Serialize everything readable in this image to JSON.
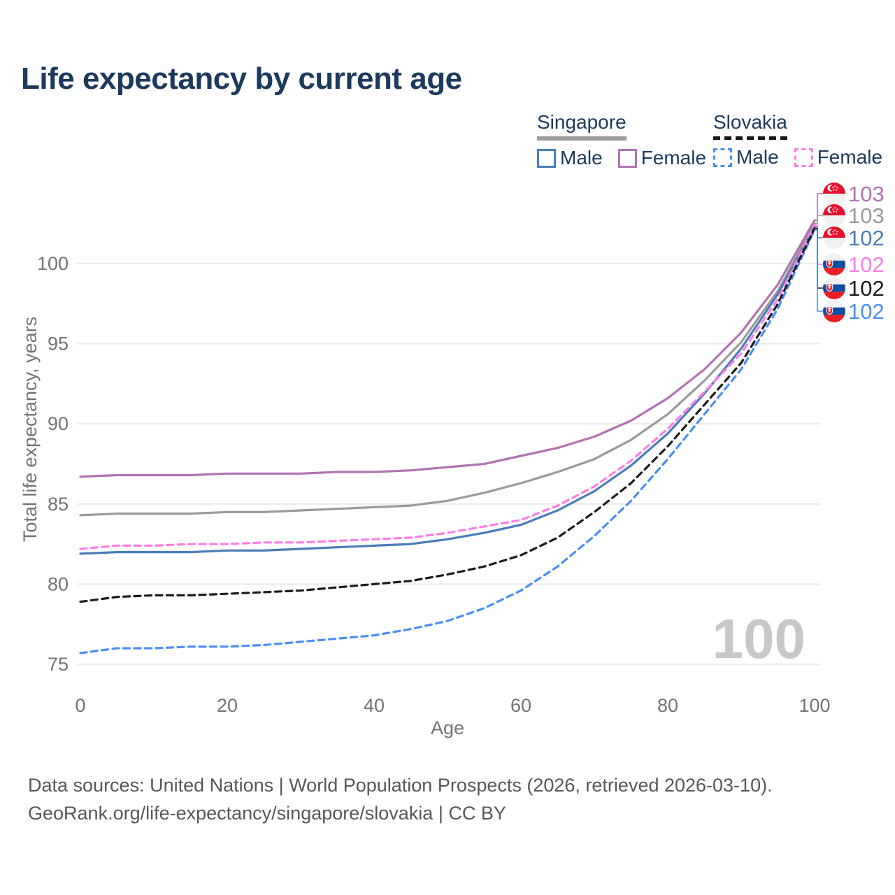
{
  "title": "Life expectancy by current age",
  "watermark": "100",
  "legend": {
    "groups": [
      {
        "country": "Singapore",
        "line_style": "solid",
        "underline_color": "#9a9a9a",
        "items": [
          {
            "label": "Male",
            "color": "#4a7db8",
            "dashed": false
          },
          {
            "label": "Female",
            "color": "#b273b2",
            "dashed": false
          }
        ]
      },
      {
        "country": "Slovakia",
        "line_style": "dashed",
        "underline_color": "#161616",
        "items": [
          {
            "label": "Male",
            "color": "#4b8ef5",
            "dashed": true
          },
          {
            "label": "Female",
            "color": "#ff7de8",
            "dashed": true
          }
        ]
      }
    ]
  },
  "footer": {
    "line1": "Data sources: United Nations | World Population Prospects (2026, retrieved 2026-03-10).",
    "line2": "GeoRank.org/life-expectancy/singapore/slovakia | CC BY"
  },
  "chart_data": {
    "type": "line",
    "title": "Life expectancy by current age",
    "xlabel": "Age",
    "ylabel": "Total life expectancy, years",
    "x_ticks": [
      0,
      20,
      40,
      60,
      80,
      100
    ],
    "y_ticks": [
      75,
      80,
      85,
      90,
      95,
      100
    ],
    "xlim": [
      0,
      100
    ],
    "ylim": [
      75,
      100
    ],
    "grid": "horizontal-only",
    "legend_position": "top-right",
    "x": [
      0,
      5,
      10,
      15,
      20,
      25,
      30,
      35,
      40,
      45,
      50,
      55,
      60,
      65,
      70,
      75,
      80,
      85,
      90,
      95,
      100
    ],
    "series": [
      {
        "name": "Singapore Female",
        "country": "Singapore",
        "sex": "Female",
        "color": "#b273b2",
        "dashed": false,
        "end_label": "103",
        "values": [
          86.7,
          86.8,
          86.8,
          86.8,
          86.9,
          86.9,
          86.9,
          87.0,
          87.0,
          87.1,
          87.3,
          87.5,
          88.0,
          88.5,
          89.2,
          90.2,
          91.6,
          93.4,
          95.7,
          98.7,
          102.7
        ]
      },
      {
        "name": "Singapore Both sexes",
        "country": "Singapore",
        "sex": "Both sexes",
        "color": "#9a9a9a",
        "dashed": false,
        "end_label": "103",
        "values": [
          84.3,
          84.4,
          84.4,
          84.4,
          84.5,
          84.5,
          84.6,
          84.7,
          84.8,
          84.9,
          85.2,
          85.7,
          86.3,
          87.0,
          87.8,
          89.0,
          90.6,
          92.7,
          95.1,
          98.3,
          102.5
        ]
      },
      {
        "name": "Singapore Male",
        "country": "Singapore",
        "sex": "Male",
        "color": "#4a7db8",
        "dashed": false,
        "end_label": "102",
        "values": [
          81.9,
          82.0,
          82.0,
          82.0,
          82.1,
          82.1,
          82.2,
          82.3,
          82.4,
          82.5,
          82.8,
          83.2,
          83.7,
          84.6,
          85.8,
          87.4,
          89.4,
          91.9,
          94.7,
          98.1,
          102.3
        ]
      },
      {
        "name": "Slovakia Female",
        "country": "Slovakia",
        "sex": "Female",
        "color": "#ff7de8",
        "dashed": true,
        "end_label": "102",
        "values": [
          82.2,
          82.4,
          82.4,
          82.5,
          82.5,
          82.6,
          82.6,
          82.7,
          82.8,
          82.9,
          83.2,
          83.6,
          84.0,
          84.9,
          86.1,
          87.7,
          89.7,
          92.0,
          94.4,
          97.8,
          102.4
        ]
      },
      {
        "name": "Slovakia Both sexes",
        "country": "Slovakia",
        "sex": "Both sexes",
        "color": "#1b1b1b",
        "dashed": true,
        "end_label": "102",
        "values": [
          78.9,
          79.2,
          79.3,
          79.3,
          79.4,
          79.5,
          79.6,
          79.8,
          80.0,
          80.2,
          80.6,
          81.1,
          81.8,
          82.9,
          84.5,
          86.3,
          88.6,
          91.2,
          93.8,
          97.5,
          102.2
        ]
      },
      {
        "name": "Slovakia Male",
        "country": "Slovakia",
        "sex": "Male",
        "color": "#4b8ef5",
        "dashed": true,
        "end_label": "102",
        "values": [
          75.7,
          76.0,
          76.0,
          76.1,
          76.1,
          76.2,
          76.4,
          76.6,
          76.8,
          77.2,
          77.7,
          78.5,
          79.6,
          81.1,
          83.0,
          85.2,
          87.8,
          90.6,
          93.4,
          97.2,
          102.1
        ]
      }
    ]
  }
}
